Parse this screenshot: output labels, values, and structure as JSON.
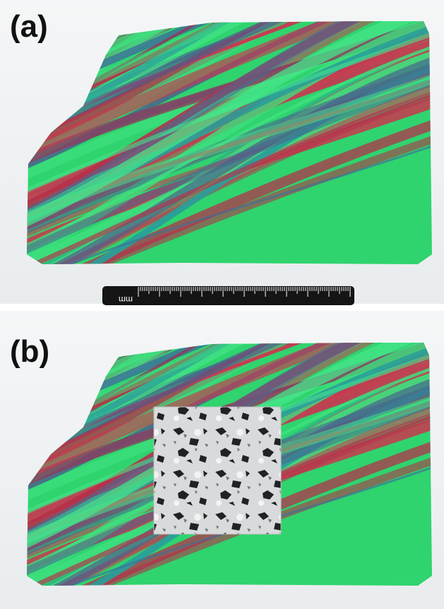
{
  "panels": [
    {
      "label": "(a)",
      "scale_unit": "mm"
    },
    {
      "label": "(b)"
    }
  ]
}
